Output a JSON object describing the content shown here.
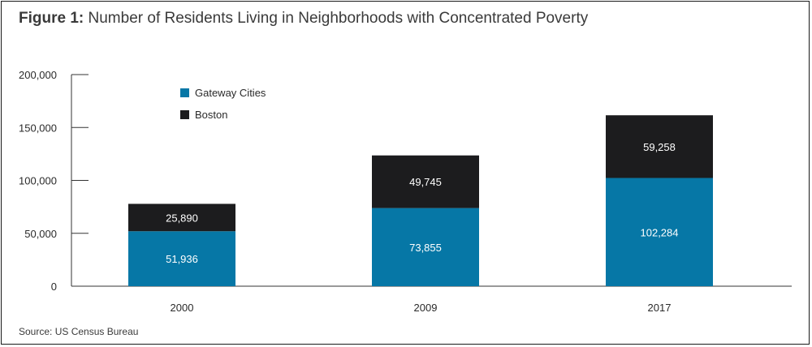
{
  "figure_label": "Figure 1:",
  "title": "Number of Residents Living in Neighborhoods with Concentrated Poverty",
  "source": "Source: US Census Bureau",
  "colors": {
    "gateway": "#0677a6",
    "boston": "#1c1c1e",
    "axis": "#333333"
  },
  "chart_data": {
    "type": "bar",
    "stacked": true,
    "categories": [
      "2000",
      "2009",
      "2017"
    ],
    "series": [
      {
        "name": "Gateway Cities",
        "values": [
          51936,
          73855,
          102284
        ]
      },
      {
        "name": "Boston",
        "values": [
          25890,
          49745,
          59258
        ]
      }
    ],
    "value_labels": [
      [
        "51,936",
        "73,855",
        "102,284"
      ],
      [
        "25,890",
        "49,745",
        "59,258"
      ]
    ],
    "y_ticks": [
      0,
      50000,
      100000,
      150000,
      200000
    ],
    "y_tick_labels": [
      "0",
      "50,000",
      "100,000",
      "150,000",
      "200,000"
    ],
    "ylim": [
      0,
      200000
    ],
    "legend_position": "top-left",
    "grid": false
  }
}
